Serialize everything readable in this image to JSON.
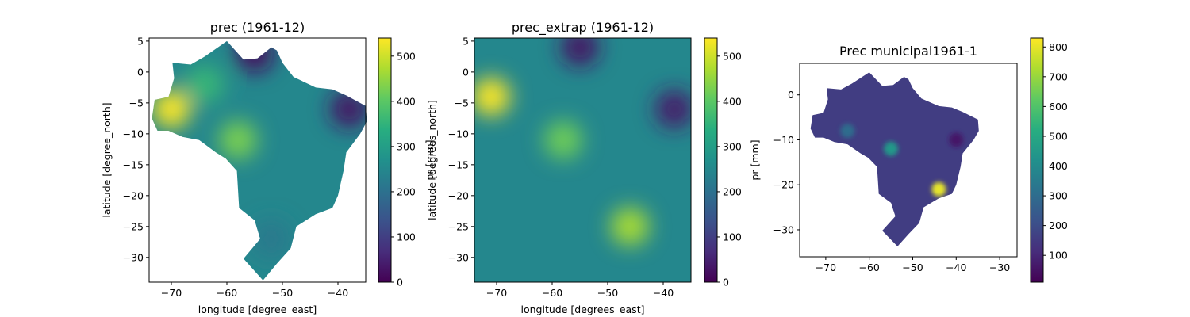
{
  "chart_data": [
    {
      "type": "heatmap",
      "title": "prec (1961-12)",
      "xlabel": "longitude [degree_east]",
      "ylabel": "latitude [degree_north]",
      "xlim": [
        -74,
        -35
      ],
      "ylim": [
        -34,
        5.5
      ],
      "xticks": [
        -70,
        -60,
        -50,
        -40
      ],
      "xtick_labels": [
        "−70",
        "−60",
        "−50",
        "−40"
      ],
      "yticks": [
        5,
        0,
        -5,
        -10,
        -15,
        -20,
        -25,
        -30
      ],
      "ytick_labels": [
        "5",
        "0",
        "−5",
        "−10",
        "−15",
        "−20",
        "−25",
        "−30"
      ],
      "colorbar": {
        "label": "pr [mm]",
        "range": [
          0,
          540
        ],
        "ticks": [
          0,
          100,
          200,
          300,
          400,
          500
        ],
        "tick_labels": [
          "0",
          "100",
          "200",
          "300",
          "400",
          "500"
        ],
        "colormap": "viridis"
      },
      "hotspots": [
        {
          "lon": -70,
          "lat": -6,
          "value": 540
        },
        {
          "lon": -58,
          "lat": -11,
          "value": 430
        },
        {
          "lon": -64,
          "lat": -2,
          "value": 360
        },
        {
          "lon": -38,
          "lat": -6,
          "value": 30
        },
        {
          "lon": -55,
          "lat": 3,
          "value": 20
        },
        {
          "lon": -52,
          "lat": -27,
          "value": 220
        }
      ]
    },
    {
      "type": "heatmap",
      "title": "prec_extrap (1961-12)",
      "xlabel": "longitude [degrees_east]",
      "ylabel": "latitude [degrees_north]",
      "xlim": [
        -74,
        -35
      ],
      "ylim": [
        -34,
        5.5
      ],
      "xticks": [
        -70,
        -60,
        -50,
        -40
      ],
      "xtick_labels": [
        "−70",
        "−60",
        "−50",
        "−40"
      ],
      "yticks": [
        5,
        0,
        -5,
        -10,
        -15,
        -20,
        -25,
        -30
      ],
      "ytick_labels": [
        "5",
        "0",
        "−5",
        "−10",
        "−15",
        "−20",
        "−25",
        "−30"
      ],
      "colorbar": {
        "label": "pr [mm]",
        "range": [
          0,
          540
        ],
        "ticks": [
          0,
          100,
          200,
          300,
          400,
          500
        ],
        "tick_labels": [
          "0",
          "100",
          "200",
          "300",
          "400",
          "500"
        ],
        "colormap": "viridis"
      },
      "hotspots": [
        {
          "lon": -71,
          "lat": -4,
          "value": 540
        },
        {
          "lon": -58,
          "lat": -11,
          "value": 420
        },
        {
          "lon": -46,
          "lat": -25,
          "value": 470
        },
        {
          "lon": -38,
          "lat": -6,
          "value": 40
        },
        {
          "lon": -55,
          "lat": 4,
          "value": 30
        }
      ]
    },
    {
      "type": "heatmap",
      "title": "Prec municipal1961-1",
      "xlabel": "",
      "ylabel": "",
      "xlim": [
        -76,
        -26
      ],
      "ylim": [
        -36,
        7
      ],
      "xticks": [
        -70,
        -60,
        -50,
        -40,
        -30
      ],
      "xtick_labels": [
        "−70",
        "−60",
        "−50",
        "−40",
        "−30"
      ],
      "yticks": [
        0,
        -10,
        -20,
        -30
      ],
      "ytick_labels": [
        "0",
        "−10",
        "−20",
        "−30"
      ],
      "colorbar": {
        "label": "",
        "range": [
          10,
          830
        ],
        "ticks": [
          100,
          200,
          300,
          400,
          500,
          600,
          700,
          800
        ],
        "tick_labels": [
          "100",
          "200",
          "300",
          "400",
          "500",
          "600",
          "700",
          "800"
        ],
        "colormap": "viridis"
      },
      "hotspots": [
        {
          "lon": -44,
          "lat": -21,
          "value": 800
        },
        {
          "lon": -55,
          "lat": -12,
          "value": 450
        },
        {
          "lon": -65,
          "lat": -8,
          "value": 300
        },
        {
          "lon": -40,
          "lat": -10,
          "value": 60
        }
      ]
    }
  ]
}
